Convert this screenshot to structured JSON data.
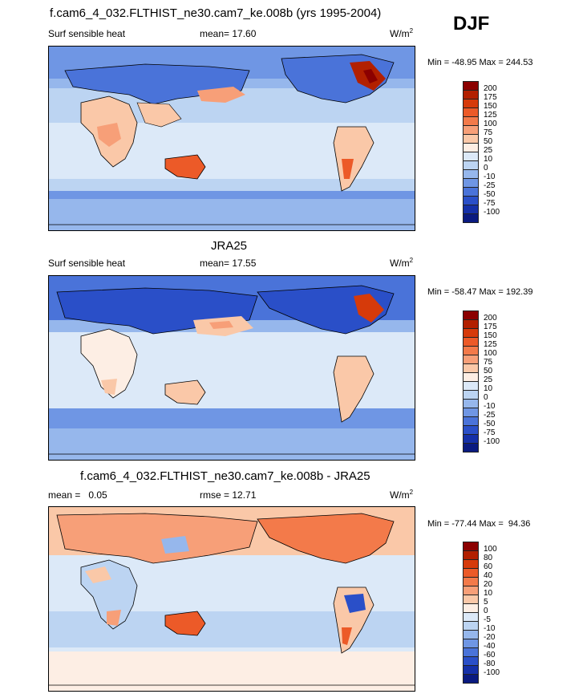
{
  "season": "DJF",
  "panels": [
    {
      "id": "model",
      "title": "f.cam6_4_032.FLTHIST_ne30.cam7_ke.008b (yrs 1995-2004)",
      "left_label": "Surf sensible heat",
      "center_label": "mean=  17.60",
      "units_base": "W/m",
      "units_sup": "2",
      "minmax": "Min = -48.95 Max = 244.53",
      "colorbar_labels": [
        "200",
        "175",
        "150",
        "125",
        "100",
        "75",
        "50",
        "25",
        "10",
        "0",
        "-10",
        "-25",
        "-50",
        "-75",
        "-100"
      ]
    },
    {
      "id": "obs",
      "title": "JRA25",
      "left_label": "Surf sensible heat",
      "center_label": "mean=  17.55",
      "units_base": "W/m",
      "units_sup": "2",
      "minmax": "Min = -58.47 Max = 192.39",
      "colorbar_labels": [
        "200",
        "175",
        "150",
        "125",
        "100",
        "75",
        "50",
        "25",
        "10",
        "0",
        "-10",
        "-25",
        "-50",
        "-75",
        "-100"
      ]
    },
    {
      "id": "diff",
      "title": "f.cam6_4_032.FLTHIST_ne30.cam7_ke.008b - JRA25",
      "left_label": "mean =   0.05",
      "center_label": "rmse =  12.71",
      "units_base": "W/m",
      "units_sup": "2",
      "minmax": "Min = -77.44 Max =  94.36",
      "colorbar_labels": [
        "100",
        "80",
        "60",
        "40",
        "20",
        "10",
        "5",
        "0",
        "-5",
        "-10",
        "-20",
        "-40",
        "-60",
        "-80",
        "-100"
      ]
    }
  ],
  "colors": {
    "scale16": [
      "#8b0000",
      "#b22000",
      "#d63a0a",
      "#ec5a28",
      "#f37a4a",
      "#f79f78",
      "#fac8a8",
      "#fdeee4",
      "#dce9f8",
      "#bcd4f2",
      "#96b7ec",
      "#6f96e4",
      "#4a73d9",
      "#2a4fc8",
      "#1530a8",
      "#0a1a80"
    ],
    "background": "#ffffff"
  }
}
